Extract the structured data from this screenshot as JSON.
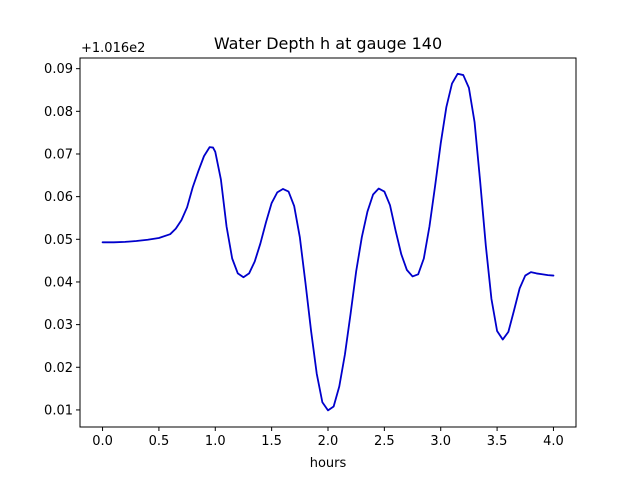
{
  "chart_data": {
    "type": "line",
    "title": "Water Depth h at gauge 140",
    "xlabel": "hours",
    "ylabel": "",
    "y_offset_label": "+1.016e2",
    "xlim": [
      -0.2,
      4.2
    ],
    "ylim": [
      0.006,
      0.0925
    ],
    "grid": false,
    "line_color": "#0000cc",
    "x_ticks": [
      0.0,
      0.5,
      1.0,
      1.5,
      2.0,
      2.5,
      3.0,
      3.5,
      4.0
    ],
    "x_tick_labels": [
      "0.0",
      "0.5",
      "1.0",
      "1.5",
      "2.0",
      "2.5",
      "3.0",
      "3.5",
      "4.0"
    ],
    "y_ticks": [
      0.01,
      0.02,
      0.03,
      0.04,
      0.05,
      0.06,
      0.07,
      0.08,
      0.09
    ],
    "y_tick_labels": [
      "0.01",
      "0.02",
      "0.03",
      "0.04",
      "0.05",
      "0.06",
      "0.07",
      "0.08",
      "0.09"
    ],
    "series": [
      {
        "x": [
          0.0,
          0.1,
          0.2,
          0.3,
          0.4,
          0.5,
          0.6,
          0.65,
          0.7,
          0.75,
          0.8,
          0.85,
          0.9,
          0.95,
          0.98,
          1.0,
          1.05,
          1.1,
          1.15,
          1.2,
          1.25,
          1.3,
          1.35,
          1.4,
          1.45,
          1.5,
          1.55,
          1.6,
          1.65,
          1.7,
          1.75,
          1.8,
          1.85,
          1.9,
          1.95,
          2.0,
          2.05,
          2.1,
          2.15,
          2.2,
          2.25,
          2.3,
          2.35,
          2.4,
          2.45,
          2.5,
          2.55,
          2.6,
          2.65,
          2.7,
          2.75,
          2.8,
          2.85,
          2.9,
          2.95,
          3.0,
          3.05,
          3.1,
          3.15,
          3.2,
          3.25,
          3.3,
          3.35,
          3.4,
          3.45,
          3.5,
          3.55,
          3.6,
          3.65,
          3.7,
          3.75,
          3.8,
          3.85,
          3.9,
          3.95,
          4.0
        ],
        "y": [
          0.0493,
          0.0493,
          0.0494,
          0.0496,
          0.0499,
          0.0503,
          0.0512,
          0.0525,
          0.0545,
          0.0575,
          0.0622,
          0.066,
          0.0695,
          0.0716,
          0.0715,
          0.0705,
          0.064,
          0.053,
          0.0455,
          0.042,
          0.0411,
          0.042,
          0.0448,
          0.049,
          0.054,
          0.0585,
          0.061,
          0.0618,
          0.0612,
          0.0578,
          0.0505,
          0.0398,
          0.0285,
          0.0185,
          0.0118,
          0.0099,
          0.0108,
          0.0155,
          0.023,
          0.0325,
          0.0425,
          0.0505,
          0.0565,
          0.0605,
          0.0619,
          0.0612,
          0.058,
          0.052,
          0.0465,
          0.0428,
          0.0413,
          0.0418,
          0.0455,
          0.053,
          0.0625,
          0.0725,
          0.081,
          0.0865,
          0.0888,
          0.0885,
          0.0855,
          0.0775,
          0.0635,
          0.0485,
          0.036,
          0.0285,
          0.0265,
          0.0283,
          0.0333,
          0.0385,
          0.0415,
          0.0423,
          0.042,
          0.0418,
          0.0416,
          0.0415
        ]
      }
    ]
  }
}
